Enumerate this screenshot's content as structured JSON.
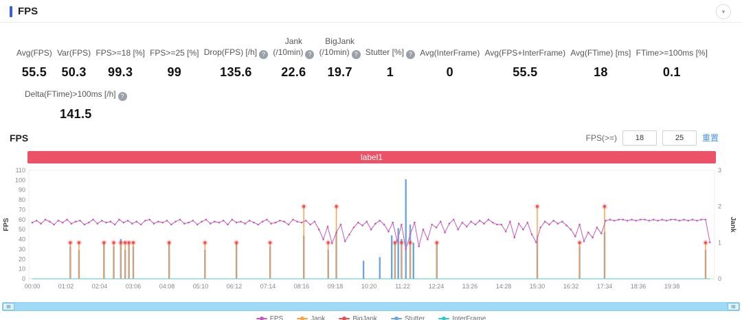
{
  "header": {
    "title": "FPS",
    "collapse_icon": "▾"
  },
  "colors": {
    "accent_bar": "#3a5fcd",
    "link": "#4a8fe2",
    "banner": "#ec5266",
    "info_icon_bg": "#9aa0a8"
  },
  "stats": {
    "info_icon_char": "?",
    "row1": [
      {
        "lines": [
          "Avg(FPS)"
        ],
        "info": false,
        "value": "55.5"
      },
      {
        "lines": [
          "Var(FPS)"
        ],
        "info": false,
        "value": "50.3"
      },
      {
        "lines": [
          "FPS>=18 [%]"
        ],
        "info": false,
        "value": "99.3"
      },
      {
        "lines": [
          "FPS>=25 [%]"
        ],
        "info": false,
        "value": "99"
      },
      {
        "lines": [
          "Drop(FPS) [/h]"
        ],
        "info": true,
        "value": "135.6"
      },
      {
        "lines": [
          "Jank",
          "(/10min)"
        ],
        "info": true,
        "value": "22.6"
      },
      {
        "lines": [
          "BigJank",
          "(/10min)"
        ],
        "info": true,
        "value": "19.7"
      },
      {
        "lines": [
          "Stutter [%]"
        ],
        "info": true,
        "value": "1"
      },
      {
        "lines": [
          "Avg(InterFrame)"
        ],
        "info": false,
        "value": "0"
      },
      {
        "lines": [
          "Avg(FPS+InterFrame)"
        ],
        "info": false,
        "value": "55.5"
      },
      {
        "lines": [
          "Avg(FTime) [ms]"
        ],
        "info": false,
        "value": "18"
      },
      {
        "lines": [
          "FTime>=100ms [%]"
        ],
        "info": false,
        "value": "0.1"
      }
    ],
    "row2": [
      {
        "lines": [
          "Delta(FTime)>100ms [/h]"
        ],
        "info": true,
        "value": "141.5"
      }
    ]
  },
  "chart": {
    "section_title": "FPS",
    "controls": {
      "fps_ge_label": "FPS(>=)",
      "input1": "18",
      "input2": "25",
      "reset_label": "重置"
    },
    "banner": {
      "text": "label1"
    }
  },
  "chart_data": {
    "type": "line",
    "title": "label1",
    "x_tick_seconds": 62,
    "x_tick_labels": [
      "00:00",
      "01:02",
      "02:04",
      "03:06",
      "04:08",
      "05:10",
      "06:12",
      "07:14",
      "08:16",
      "09:18",
      "10:20",
      "11:22",
      "12:24",
      "13:26",
      "14:28",
      "15:30",
      "16:32",
      "17:34",
      "18:36",
      "19:38"
    ],
    "y_left": {
      "label": "FPS",
      "min": 0,
      "max": 110,
      "step": 10
    },
    "y_right": {
      "label": "Jank",
      "min": 0,
      "max": 3,
      "step": 1
    },
    "legend_position": "bottom",
    "grid": false,
    "series": [
      {
        "name": "FPS",
        "axis": "left",
        "type": "line",
        "color": "#c45bba",
        "t0": 0,
        "dt": 8,
        "values": [
          57,
          59,
          56,
          60,
          58,
          55,
          59,
          57,
          60,
          56,
          58,
          59,
          55,
          57,
          60,
          56,
          59,
          57,
          58,
          55,
          60,
          57,
          59,
          56,
          58,
          55,
          59,
          60,
          56,
          58,
          57,
          59,
          55,
          58,
          60,
          56,
          57,
          59,
          55,
          58,
          60,
          56,
          58,
          57,
          59,
          55,
          60,
          57,
          58,
          56,
          59,
          57,
          55,
          58,
          60,
          56,
          57,
          59,
          58,
          55,
          60,
          58,
          57,
          59,
          55,
          58,
          50,
          40,
          53,
          36,
          47,
          55,
          38,
          45,
          52,
          57,
          54,
          58,
          50,
          56,
          59,
          55,
          48,
          57,
          38,
          55,
          30,
          45,
          57,
          33,
          50,
          40,
          55,
          52,
          58,
          47,
          56,
          60,
          50,
          57,
          53,
          58,
          55,
          59,
          56,
          60,
          57,
          55,
          55,
          48,
          58,
          42,
          56,
          50,
          57,
          45,
          37,
          52,
          58,
          55,
          59,
          56,
          58,
          54,
          50,
          43,
          55,
          38,
          47,
          42,
          52,
          46,
          59,
          60,
          59,
          60,
          60,
          59,
          60,
          59,
          60,
          60,
          59,
          60,
          59,
          60,
          59,
          60,
          60,
          59,
          60,
          59,
          60,
          59,
          60,
          60,
          37
        ]
      },
      {
        "name": "Jank",
        "axis": "right",
        "type": "spike",
        "color": "#ff9f40",
        "points": [
          [
            70,
            1
          ],
          [
            86,
            1
          ],
          [
            132,
            1
          ],
          [
            150,
            1
          ],
          [
            163,
            1
          ],
          [
            171,
            1
          ],
          [
            178,
            1
          ],
          [
            186,
            1
          ],
          [
            252,
            1
          ],
          [
            318,
            1
          ],
          [
            376,
            1
          ],
          [
            438,
            1
          ],
          [
            500,
            2
          ],
          [
            545,
            1
          ],
          [
            560,
            2
          ],
          [
            668,
            1
          ],
          [
            680,
            1
          ],
          [
            696,
            1
          ],
          [
            745,
            1
          ],
          [
            930,
            2
          ],
          [
            1008,
            1
          ],
          [
            1054,
            2
          ],
          [
            1240,
            1
          ]
        ]
      },
      {
        "name": "BigJank",
        "axis": "right",
        "type": "marker",
        "color": "#e84c4c",
        "points": [
          [
            70,
            1
          ],
          [
            86,
            1
          ],
          [
            132,
            1
          ],
          [
            150,
            1
          ],
          [
            163,
            1
          ],
          [
            171,
            1
          ],
          [
            178,
            1
          ],
          [
            186,
            1
          ],
          [
            252,
            1
          ],
          [
            318,
            1
          ],
          [
            376,
            1
          ],
          [
            438,
            1
          ],
          [
            500,
            2
          ],
          [
            545,
            1
          ],
          [
            560,
            2
          ],
          [
            668,
            1
          ],
          [
            680,
            1
          ],
          [
            696,
            1
          ],
          [
            745,
            1
          ],
          [
            930,
            2
          ],
          [
            1008,
            1
          ],
          [
            1054,
            2
          ],
          [
            1240,
            1
          ]
        ]
      },
      {
        "name": "Stutter",
        "axis": "right",
        "type": "bar",
        "color": "#6ca6dd",
        "points": [
          [
            70,
            0.9
          ],
          [
            86,
            0.8
          ],
          [
            132,
            1.0
          ],
          [
            150,
            0.9
          ],
          [
            163,
            1.1
          ],
          [
            171,
            0.8
          ],
          [
            178,
            1.0
          ],
          [
            186,
            0.9
          ],
          [
            252,
            1.0
          ],
          [
            318,
            0.8
          ],
          [
            376,
            1.0
          ],
          [
            438,
            0.9
          ],
          [
            500,
            1.2
          ],
          [
            545,
            0.8
          ],
          [
            560,
            1.3
          ],
          [
            610,
            0.5
          ],
          [
            640,
            0.6
          ],
          [
            662,
            1.2
          ],
          [
            668,
            1.0
          ],
          [
            674,
            1.4
          ],
          [
            680,
            1.1
          ],
          [
            688,
            2.75
          ],
          [
            696,
            1.5
          ],
          [
            702,
            1.0
          ],
          [
            745,
            1.0
          ],
          [
            930,
            1.2
          ],
          [
            1008,
            0.9
          ],
          [
            1054,
            1.3
          ],
          [
            1240,
            0.8
          ]
        ]
      },
      {
        "name": "InterFrame",
        "axis": "left",
        "type": "flatline",
        "color": "#2fc7c9",
        "value": 0
      }
    ]
  }
}
